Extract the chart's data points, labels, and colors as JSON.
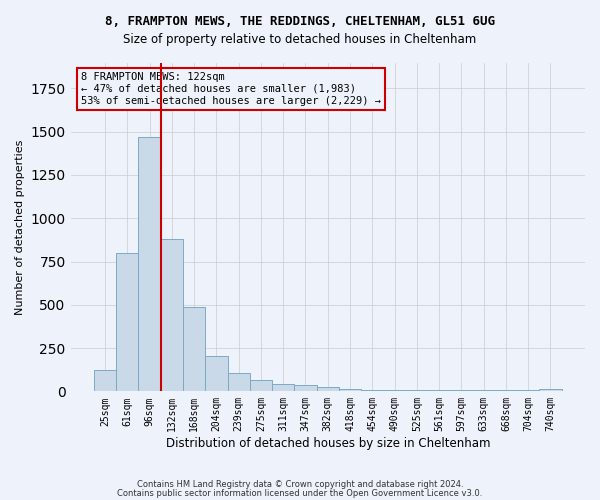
{
  "title_line1": "8, FRAMPTON MEWS, THE REDDINGS, CHELTENHAM, GL51 6UG",
  "title_line2": "Size of property relative to detached houses in Cheltenham",
  "xlabel": "Distribution of detached houses by size in Cheltenham",
  "ylabel": "Number of detached properties",
  "bar_values": [
    125,
    800,
    1470,
    880,
    490,
    205,
    105,
    65,
    40,
    35,
    25,
    15,
    5,
    5,
    5,
    5,
    5,
    5,
    5,
    5,
    15
  ],
  "bar_labels": [
    "25sqm",
    "61sqm",
    "96sqm",
    "132sqm",
    "168sqm",
    "204sqm",
    "239sqm",
    "275sqm",
    "311sqm",
    "347sqm",
    "382sqm",
    "418sqm",
    "454sqm",
    "490sqm",
    "525sqm",
    "561sqm",
    "597sqm",
    "633sqm",
    "668sqm",
    "704sqm",
    "740sqm"
  ],
  "bar_color": "#c9d9e8",
  "bar_edge_color": "#7aaac8",
  "grid_color": "#cccccc",
  "vline_x": 2.5,
  "vline_color": "#cc0000",
  "annotation_text": "8 FRAMPTON MEWS: 122sqm\n← 47% of detached houses are smaller (1,983)\n53% of semi-detached houses are larger (2,229) →",
  "annotation_box_color": "#cc0000",
  "background_color": "#eef2fa",
  "ylim": [
    0,
    1900
  ],
  "footer_line1": "Contains HM Land Registry data © Crown copyright and database right 2024.",
  "footer_line2": "Contains public sector information licensed under the Open Government Licence v3.0."
}
